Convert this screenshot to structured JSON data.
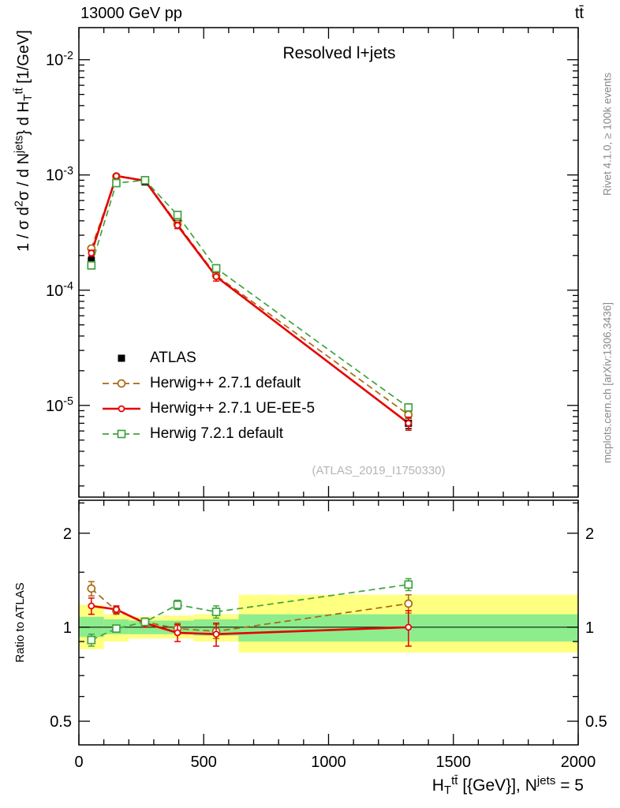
{
  "header": {
    "left": "13000 GeV pp",
    "right": "tt̄"
  },
  "titles": {
    "plot_title": "Resolved l+jets",
    "watermark": "(ATLAS_2019_I1750330)"
  },
  "side": {
    "top": "Rivet 4.1.0, ≥ 100k events",
    "bottom": "mcplots.cern.ch [arXiv:1306.3436]"
  },
  "chart_data": {
    "type": "line",
    "title": "Resolved l+jets",
    "x_title": "H_T^{tt̄} [{GeV}], N^{jets} = 5",
    "x_range": [
      0,
      2000
    ],
    "x_major_ticks": [
      0,
      500,
      1000,
      1500,
      2000
    ],
    "x_minor_step": 100,
    "main": {
      "y_title": "1 / σ d^{2}σ / d N^{jets}} d H_T^{tt̄} [1/GeV]",
      "scale": "log",
      "ymin": 1.6e-06,
      "ymax": 0.019,
      "y_major_ticks": [
        {
          "v": 0.01,
          "label": "10^{-2}"
        },
        {
          "v": 0.001,
          "label": "10^{-3}"
        },
        {
          "v": 0.0001,
          "label": "10^{-4}"
        },
        {
          "v": 1e-05,
          "label": "10^{-5}"
        }
      ]
    },
    "ratio": {
      "y_title": "Ratio to ATLAS",
      "scale": "log",
      "ymin": 0.42,
      "ymax": 2.55,
      "ref_line": 1,
      "y_major_ticks": [
        {
          "v": 0.5,
          "label": "0.5"
        },
        {
          "v": 1,
          "label": "1"
        },
        {
          "v": 2,
          "label": "2"
        }
      ],
      "y_minor_ticks": [
        0.6,
        0.7,
        0.8,
        0.9,
        1.5,
        2.5
      ]
    },
    "bin_edges": [
      0,
      100,
      200,
      330,
      460,
      640,
      2000
    ],
    "x": [
      50,
      150,
      265,
      395,
      550,
      1320
    ],
    "bands": {
      "yellow_color": "#ffff80",
      "green_color": "#8ded8d",
      "yellow": [
        [
          0.85,
          1.18
        ],
        [
          0.9,
          1.1
        ],
        [
          0.92,
          1.08
        ],
        [
          0.92,
          1.09
        ],
        [
          0.9,
          1.1
        ],
        [
          0.83,
          1.27
        ]
      ],
      "green": [
        [
          0.93,
          1.08
        ],
        [
          0.95,
          1.06
        ],
        [
          0.95,
          1.05
        ],
        [
          0.95,
          1.05
        ],
        [
          0.94,
          1.06
        ],
        [
          0.9,
          1.1
        ]
      ]
    },
    "series": [
      {
        "name": "atlas",
        "label": "ATLAS",
        "color": "#000000",
        "marker": "square-filled",
        "msize": 9,
        "line": "none",
        "y": [
          0.00018,
          0.00086,
          0.00087,
          0.00038,
          0.000138,
          7e-06
        ],
        "yerr_frac": [
          0.08,
          0.04,
          0.03,
          0.05,
          0.06,
          0.1
        ]
      },
      {
        "name": "herwigpp-271-default",
        "label": "Herwig++ 2.7.1 default",
        "color": "#aa6611",
        "marker": "circle-open",
        "msize": 9,
        "line": "dashed",
        "y": [
          0.00023,
          0.00097,
          0.0009,
          0.000376,
          0.000134,
          8.3e-06
        ],
        "ratio": [
          1.33,
          1.13,
          1.04,
          0.99,
          0.97,
          1.19
        ],
        "ratio_err": [
          0.07,
          0.03,
          0.03,
          0.04,
          0.05,
          0.08
        ]
      },
      {
        "name": "herwigpp-271-ueee5",
        "label": "Herwig++ 2.7.1 UE-EE-5",
        "color": "#e60000",
        "marker": "circle-open",
        "msize": 7,
        "line": "solid-thick",
        "y": [
          0.00021,
          0.00098,
          0.00089,
          0.000365,
          0.000131,
          7e-06
        ],
        "ratio": [
          1.17,
          1.14,
          1.03,
          0.96,
          0.95,
          1.0
        ],
        "ratio_err": [
          0.07,
          0.03,
          0.03,
          0.06,
          0.08,
          0.13
        ]
      },
      {
        "name": "herwig-721-default",
        "label": "Herwig 7.2.1 default",
        "color": "#3fa33f",
        "marker": "square-open",
        "msize": 9,
        "line": "dashed",
        "y": [
          0.000164,
          0.00085,
          0.0009,
          0.00045,
          0.000155,
          9.6e-06
        ],
        "ratio": [
          0.91,
          0.99,
          1.04,
          1.18,
          1.12,
          1.37
        ],
        "ratio_err": [
          0.04,
          0.02,
          0.02,
          0.04,
          0.05,
          0.06
        ]
      }
    ]
  }
}
